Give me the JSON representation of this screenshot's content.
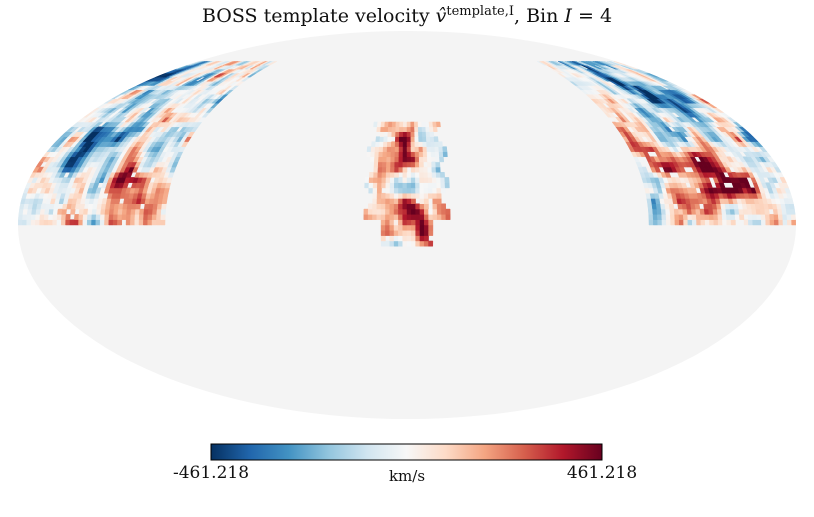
{
  "chart_data": {
    "type": "heatmap",
    "projection": "mollweide",
    "title": {
      "prefix": "BOSS template velocity ",
      "symbol": "v̂",
      "superscript": "template,I",
      "suffix": ", Bin ",
      "bin_symbol": "I",
      "bin_equals": " = ",
      "bin_value": "4"
    },
    "colorbar": {
      "min": -461.218,
      "max": 461.218,
      "min_label": "-461.218",
      "max_label": "461.218",
      "unit": "km/s",
      "colormap": "RdBu_r"
    },
    "background_color": "#f4f4f4",
    "footprints": [
      {
        "name": "NGC-left",
        "lon_range": [
          -180,
          -112
        ],
        "lat_range": [
          0,
          67
        ],
        "pattern": "mixed-warm-center"
      },
      {
        "name": "center-patch",
        "lon_range": [
          -20,
          20
        ],
        "lat_range": [
          -8,
          40
        ],
        "pattern": "mixed"
      },
      {
        "name": "NGC-right",
        "lon_range": [
          112,
          180
        ],
        "lat_range": [
          0,
          67
        ],
        "pattern": "blue-top-red-bottom"
      }
    ]
  }
}
